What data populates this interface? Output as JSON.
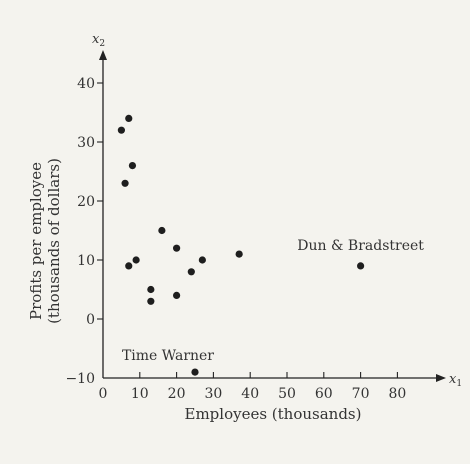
{
  "chart_data": {
    "type": "scatter",
    "xlabel": "Employees (thousands)",
    "ylabel_lines": [
      "Profits per employee",
      "(thousands of dollars)"
    ],
    "x_var": "x",
    "x_var_sub": "1",
    "y_var": "x",
    "y_var_sub": "2",
    "xlim": [
      0,
      90
    ],
    "ylim": [
      -10,
      45
    ],
    "x_ticks": [
      0,
      10,
      20,
      30,
      40,
      50,
      60,
      70,
      80
    ],
    "y_ticks": [
      -10,
      0,
      10,
      20,
      30,
      40
    ],
    "x_tick_labels": [
      "0",
      "10",
      "20",
      "30",
      "40",
      "50",
      "60",
      "70",
      "80"
    ],
    "y_tick_labels": [
      "−10",
      "0",
      "10",
      "20",
      "30",
      "40"
    ],
    "points": [
      {
        "x": 5,
        "y": 32
      },
      {
        "x": 7,
        "y": 34
      },
      {
        "x": 8,
        "y": 26
      },
      {
        "x": 6,
        "y": 23
      },
      {
        "x": 7,
        "y": 9
      },
      {
        "x": 9,
        "y": 10
      },
      {
        "x": 16,
        "y": 15
      },
      {
        "x": 20,
        "y": 12
      },
      {
        "x": 13,
        "y": 5
      },
      {
        "x": 13,
        "y": 3
      },
      {
        "x": 20,
        "y": 4
      },
      {
        "x": 24,
        "y": 8
      },
      {
        "x": 27,
        "y": 10
      },
      {
        "x": 37,
        "y": 11
      },
      {
        "x": 70,
        "y": 9
      },
      {
        "x": 25,
        "y": -9
      }
    ],
    "annotations": [
      {
        "text": "Dun & Bradstreet",
        "x": 70,
        "y": 9
      },
      {
        "text": "Time Warner",
        "x": 25,
        "y": -9
      }
    ]
  }
}
